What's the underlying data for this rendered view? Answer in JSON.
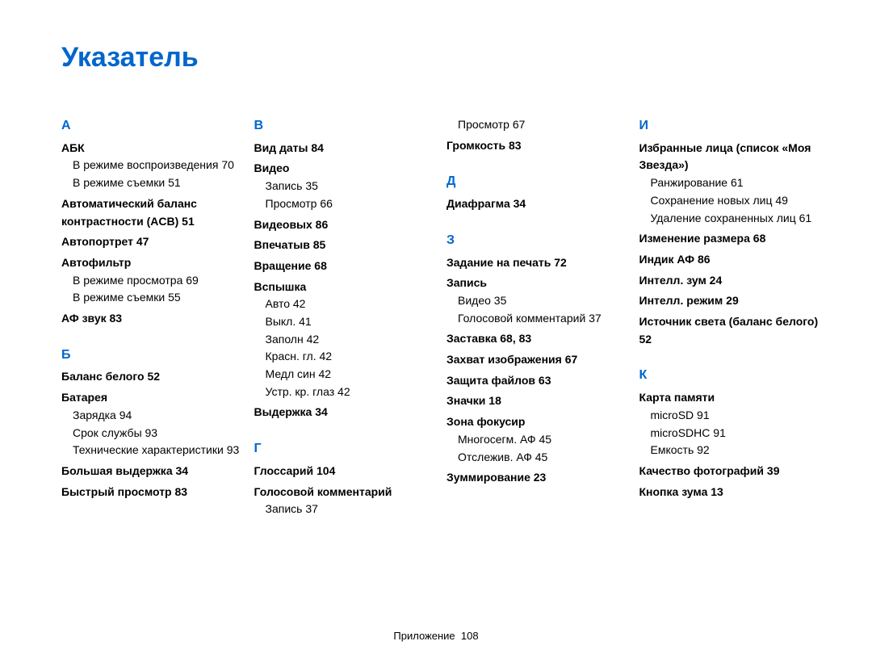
{
  "title": "Указатель",
  "footer": {
    "label": "Приложение",
    "page": "108"
  },
  "columns": [
    [
      {
        "type": "letter",
        "text": "А"
      },
      {
        "type": "bold",
        "text": "АБК"
      },
      {
        "type": "sub",
        "text": "В режиме воспроизведения  70"
      },
      {
        "type": "sub",
        "text": "В режиме съемки  51"
      },
      {
        "type": "bold",
        "text": "Автоматический баланс контрастности (ACB)  51"
      },
      {
        "type": "bold",
        "text": "Автопортрет  47"
      },
      {
        "type": "bold",
        "text": "Автофильтр"
      },
      {
        "type": "sub",
        "text": "В режиме просмотра  69"
      },
      {
        "type": "sub",
        "text": "В режиме съемки  55"
      },
      {
        "type": "bold",
        "text": "АФ звук  83"
      },
      {
        "type": "letter",
        "text": "Б"
      },
      {
        "type": "bold",
        "text": "Баланс белого  52"
      },
      {
        "type": "bold",
        "text": "Батарея"
      },
      {
        "type": "sub",
        "text": "Зарядка  94"
      },
      {
        "type": "sub",
        "text": "Срок службы  93"
      },
      {
        "type": "sub",
        "text": "Технические характеристики  93"
      },
      {
        "type": "bold",
        "text": "Большая выдержка  34"
      },
      {
        "type": "bold",
        "text": "Быстрый просмотр  83"
      }
    ],
    [
      {
        "type": "letter",
        "text": "В"
      },
      {
        "type": "bold",
        "text": "Вид даты  84"
      },
      {
        "type": "bold",
        "text": "Видео"
      },
      {
        "type": "sub",
        "text": "Запись  35"
      },
      {
        "type": "sub",
        "text": "Просмотр  66"
      },
      {
        "type": "bold",
        "text": "Видеовых  86"
      },
      {
        "type": "bold",
        "text": "Впечатыв  85"
      },
      {
        "type": "bold",
        "text": "Вращение  68"
      },
      {
        "type": "bold",
        "text": "Вспышка"
      },
      {
        "type": "sub",
        "text": "Авто  42"
      },
      {
        "type": "sub",
        "text": "Выкл.  41"
      },
      {
        "type": "sub",
        "text": "Заполн  42"
      },
      {
        "type": "sub",
        "text": "Красн. гл.  42"
      },
      {
        "type": "sub",
        "text": "Медл син  42"
      },
      {
        "type": "sub",
        "text": "Устр. кр. глаз  42"
      },
      {
        "type": "bold",
        "text": "Выдержка  34"
      },
      {
        "type": "letter",
        "text": "Г"
      },
      {
        "type": "bold",
        "text": "Глоссарий  104"
      },
      {
        "type": "bold",
        "text": "Голосовой комментарий"
      },
      {
        "type": "sub",
        "text": "Запись  37"
      }
    ],
    [
      {
        "type": "sub",
        "text": "Просмотр  67"
      },
      {
        "type": "bold",
        "text": "Громкость  83"
      },
      {
        "type": "letter",
        "text": "Д"
      },
      {
        "type": "bold",
        "text": "Диафрагма  34"
      },
      {
        "type": "letter",
        "text": "З"
      },
      {
        "type": "bold",
        "text": "Задание на печать  72"
      },
      {
        "type": "bold",
        "text": "Запись"
      },
      {
        "type": "sub",
        "text": "Видео  35"
      },
      {
        "type": "sub",
        "text": "Голосовой комментарий  37"
      },
      {
        "type": "bold",
        "text": "Заставка  68, 83"
      },
      {
        "type": "bold",
        "text": "Захват изображения  67"
      },
      {
        "type": "bold",
        "text": "Защита файлов  63"
      },
      {
        "type": "bold",
        "text": "Значки  18"
      },
      {
        "type": "bold",
        "text": "Зона фокусир"
      },
      {
        "type": "sub",
        "text": "Многосегм. АФ  45"
      },
      {
        "type": "sub",
        "text": "Отслежив. АФ  45"
      },
      {
        "type": "bold",
        "text": "Зуммирование  23"
      }
    ],
    [
      {
        "type": "letter",
        "text": "И"
      },
      {
        "type": "bold",
        "text": "Избранные лица (список «Моя Звезда»)"
      },
      {
        "type": "sub",
        "text": "Ранжирование  61"
      },
      {
        "type": "sub",
        "text": "Сохранение новых лиц  49"
      },
      {
        "type": "sub",
        "text": "Удаление сохраненных лиц  61"
      },
      {
        "type": "bold",
        "text": "Изменение размера  68"
      },
      {
        "type": "bold",
        "text": "Индик АФ  86"
      },
      {
        "type": "bold",
        "text": "Интелл. зум  24"
      },
      {
        "type": "bold",
        "text": "Интелл. режим  29"
      },
      {
        "type": "bold",
        "text": "Источник света (баланс белого)  52"
      },
      {
        "type": "letter",
        "text": "К"
      },
      {
        "type": "bold",
        "text": "Карта памяти"
      },
      {
        "type": "sub",
        "text": "microSD  91"
      },
      {
        "type": "sub",
        "text": "microSDHC  91"
      },
      {
        "type": "sub",
        "text": "Емкость  92"
      },
      {
        "type": "bold",
        "text": "Качество фотографий  39"
      },
      {
        "type": "bold",
        "text": "Кнопка зума  13"
      }
    ]
  ]
}
